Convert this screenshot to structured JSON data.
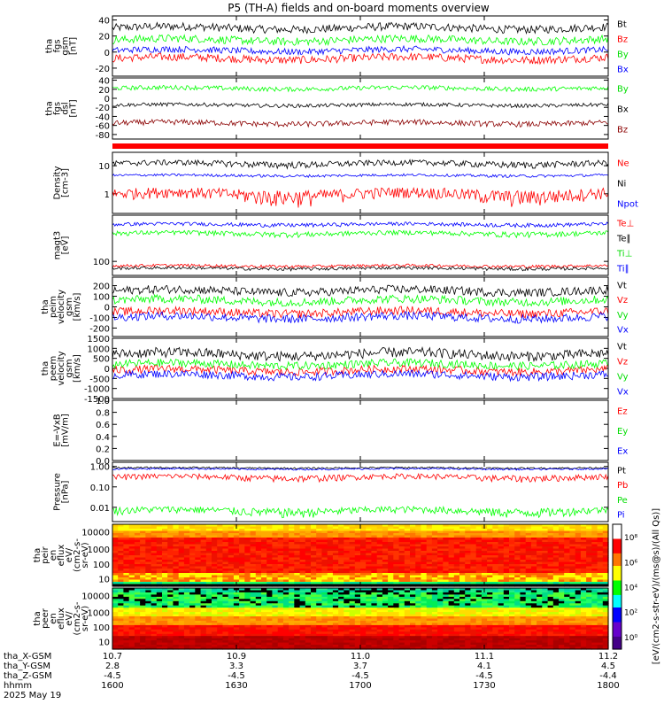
{
  "title": "P5 (TH-A) fields and on-board moments overview",
  "colors": {
    "black": "#000000",
    "red": "#ff0000",
    "green": "#00ff00",
    "blue": "#0000ff",
    "dark_red": "#8b0000"
  },
  "chart_data": {
    "type": "line",
    "x_axis": {
      "ticks": [
        {
          "hhmm": "1600",
          "x_gsm": "10.7",
          "y_gsm": "2.8",
          "z_gsm": "-4.5"
        },
        {
          "hhmm": "1630",
          "x_gsm": "10.9",
          "y_gsm": "3.3",
          "z_gsm": "-4.5"
        },
        {
          "hhmm": "1700",
          "x_gsm": "11.0",
          "y_gsm": "3.7",
          "z_gsm": "-4.5"
        },
        {
          "hhmm": "1730",
          "x_gsm": "11.1",
          "y_gsm": "4.1",
          "z_gsm": "-4.5"
        },
        {
          "hhmm": "1800",
          "x_gsm": "11.2",
          "y_gsm": "4.5",
          "z_gsm": "-4.4"
        }
      ],
      "row_labels": [
        "tha_X-GSM",
        "tha_Y-GSM",
        "tha_Z-GSM",
        "hhmm",
        "2025 May 19"
      ]
    },
    "panels": [
      {
        "id": "fgs_gsm",
        "ylabel": [
          "tha",
          "fgs",
          "gsm",
          "[nT]"
        ],
        "yticks": [
          "40",
          "20",
          "0",
          "-20"
        ],
        "scale": "linear",
        "ylim": [
          -30,
          45
        ],
        "series": [
          {
            "name": "Bt",
            "color": "black",
            "mean": 30,
            "amp": 5
          },
          {
            "name": "Bz",
            "color": "red",
            "mean": -8,
            "amp": 5
          },
          {
            "name": "By",
            "color": "green",
            "mean": 15,
            "amp": 5
          },
          {
            "name": "Bx",
            "color": "blue",
            "mean": 2,
            "amp": 4
          }
        ]
      },
      {
        "id": "fgs_dsl",
        "ylabel": [
          "tha",
          "fgs",
          "dsl",
          "[nT]"
        ],
        "yticks": [
          "40",
          "20",
          "0",
          "-20",
          "-40",
          "-60",
          "-80"
        ],
        "scale": "linear",
        "ylim": [
          -90,
          45
        ],
        "series": [
          {
            "name": "By",
            "color": "green",
            "mean": 22,
            "amp": 5
          },
          {
            "name": "Bx",
            "color": "black",
            "mean": -15,
            "amp": 4
          },
          {
            "name": "Bz",
            "color": "dark_red",
            "mean": -55,
            "amp": 6
          }
        ]
      },
      {
        "id": "density",
        "ylabel": [
          "Density",
          "[cm-3]"
        ],
        "yticks": [
          "10",
          "1"
        ],
        "scale": "log",
        "ylim": [
          0.2,
          30
        ],
        "series": [
          {
            "name": "Ne",
            "color": "red",
            "mean": 1.0,
            "amp": 0.5
          },
          {
            "name": "Ni",
            "color": "black",
            "mean": 12,
            "amp": 3
          },
          {
            "name": "Npot",
            "color": "blue",
            "mean": 4.5,
            "amp": 0.5
          }
        ]
      },
      {
        "id": "temp",
        "ylabel": [
          "magt3",
          "[eV]"
        ],
        "yticks": [
          "100"
        ],
        "scale": "log",
        "ylim": [
          20,
          20000
        ],
        "series": [
          {
            "name": "Te⊥",
            "color": "red",
            "mean": 60,
            "amp": 10
          },
          {
            "name": "Te∥",
            "color": "black",
            "mean": 45,
            "amp": 8
          },
          {
            "name": "Ti⊥",
            "color": "green",
            "mean": 2500,
            "amp": 700
          },
          {
            "name": "Ti∥",
            "color": "blue",
            "mean": 7000,
            "amp": 1500
          }
        ]
      },
      {
        "id": "peim_vel",
        "ylabel": [
          "tha",
          "peim",
          "velocity",
          "gsm",
          "[km/s]"
        ],
        "yticks": [
          "200",
          "100",
          "0",
          "-100",
          "-200"
        ],
        "scale": "linear",
        "ylim": [
          -280,
          280
        ],
        "series": [
          {
            "name": "Vt",
            "color": "black",
            "mean": 150,
            "amp": 40
          },
          {
            "name": "Vz",
            "color": "red",
            "mean": -50,
            "amp": 40
          },
          {
            "name": "Vy",
            "color": "green",
            "mean": 60,
            "amp": 40
          },
          {
            "name": "Vx",
            "color": "blue",
            "mean": -100,
            "amp": 40
          }
        ]
      },
      {
        "id": "peem_vel",
        "ylabel": [
          "tha",
          "peem",
          "velocity",
          "gsm",
          "[km/s]"
        ],
        "yticks": [
          "1500",
          "1000",
          "500",
          "0",
          "-500",
          "-1000",
          "-1500"
        ],
        "scale": "linear",
        "ylim": [
          -1500,
          1500
        ],
        "series": [
          {
            "name": "Vt",
            "color": "black",
            "mean": 700,
            "amp": 250
          },
          {
            "name": "Vz",
            "color": "red",
            "mean": -100,
            "amp": 200
          },
          {
            "name": "Vy",
            "color": "green",
            "mean": 200,
            "amp": 200
          },
          {
            "name": "Vx",
            "color": "blue",
            "mean": -350,
            "amp": 200
          }
        ]
      },
      {
        "id": "e_vxb",
        "ylabel": [
          "E=-VxB",
          "[mV/m]"
        ],
        "yticks": [
          "1.0",
          "0.8",
          "0.6",
          "0.4",
          "0.2",
          "0.0"
        ],
        "scale": "linear",
        "ylim": [
          0,
          1
        ],
        "series": [
          {
            "name": "Ez",
            "color": "red"
          },
          {
            "name": "Ey",
            "color": "green"
          },
          {
            "name": "Ex",
            "color": "blue"
          }
        ]
      },
      {
        "id": "pressure",
        "ylabel": [
          "Pressure",
          "[nPa]"
        ],
        "yticks": [
          "1.00",
          "0.10",
          "0.01"
        ],
        "scale": "log",
        "ylim": [
          0.002,
          1.6
        ],
        "series": [
          {
            "name": "Pt",
            "color": "black",
            "mean": 0.85,
            "amp": 0.08
          },
          {
            "name": "Pb",
            "color": "red",
            "mean": 0.3,
            "amp": 0.1
          },
          {
            "name": "Pe",
            "color": "green",
            "mean": 0.007,
            "amp": 0.003
          },
          {
            "name": "Pi",
            "color": "blue",
            "mean": 0.75,
            "amp": 0.07
          }
        ]
      },
      {
        "id": "peir_eflux",
        "type": "heatmap",
        "ylabel": [
          "tha",
          "peir",
          "en",
          "eflux",
          "eV/",
          "(cm2-s-",
          "sr-eV)"
        ],
        "yticks": [
          "10000",
          "1000",
          "100",
          "10"
        ],
        "scale": "log"
      },
      {
        "id": "peer_eflux",
        "type": "heatmap",
        "ylabel": [
          "tha",
          "peer",
          "en",
          "eflux",
          "eV/",
          "(cm2-s-",
          "sr-eV)"
        ],
        "yticks": [
          "10000",
          "1000",
          "100",
          "10"
        ],
        "scale": "log"
      }
    ],
    "colorbar": {
      "label": "[eV/(cm2-s-str-eV)/(ms@s)/(All Qs)]",
      "ticks": [
        "10⁸",
        "10⁶",
        "10⁴",
        "10²",
        "10⁰"
      ]
    }
  }
}
